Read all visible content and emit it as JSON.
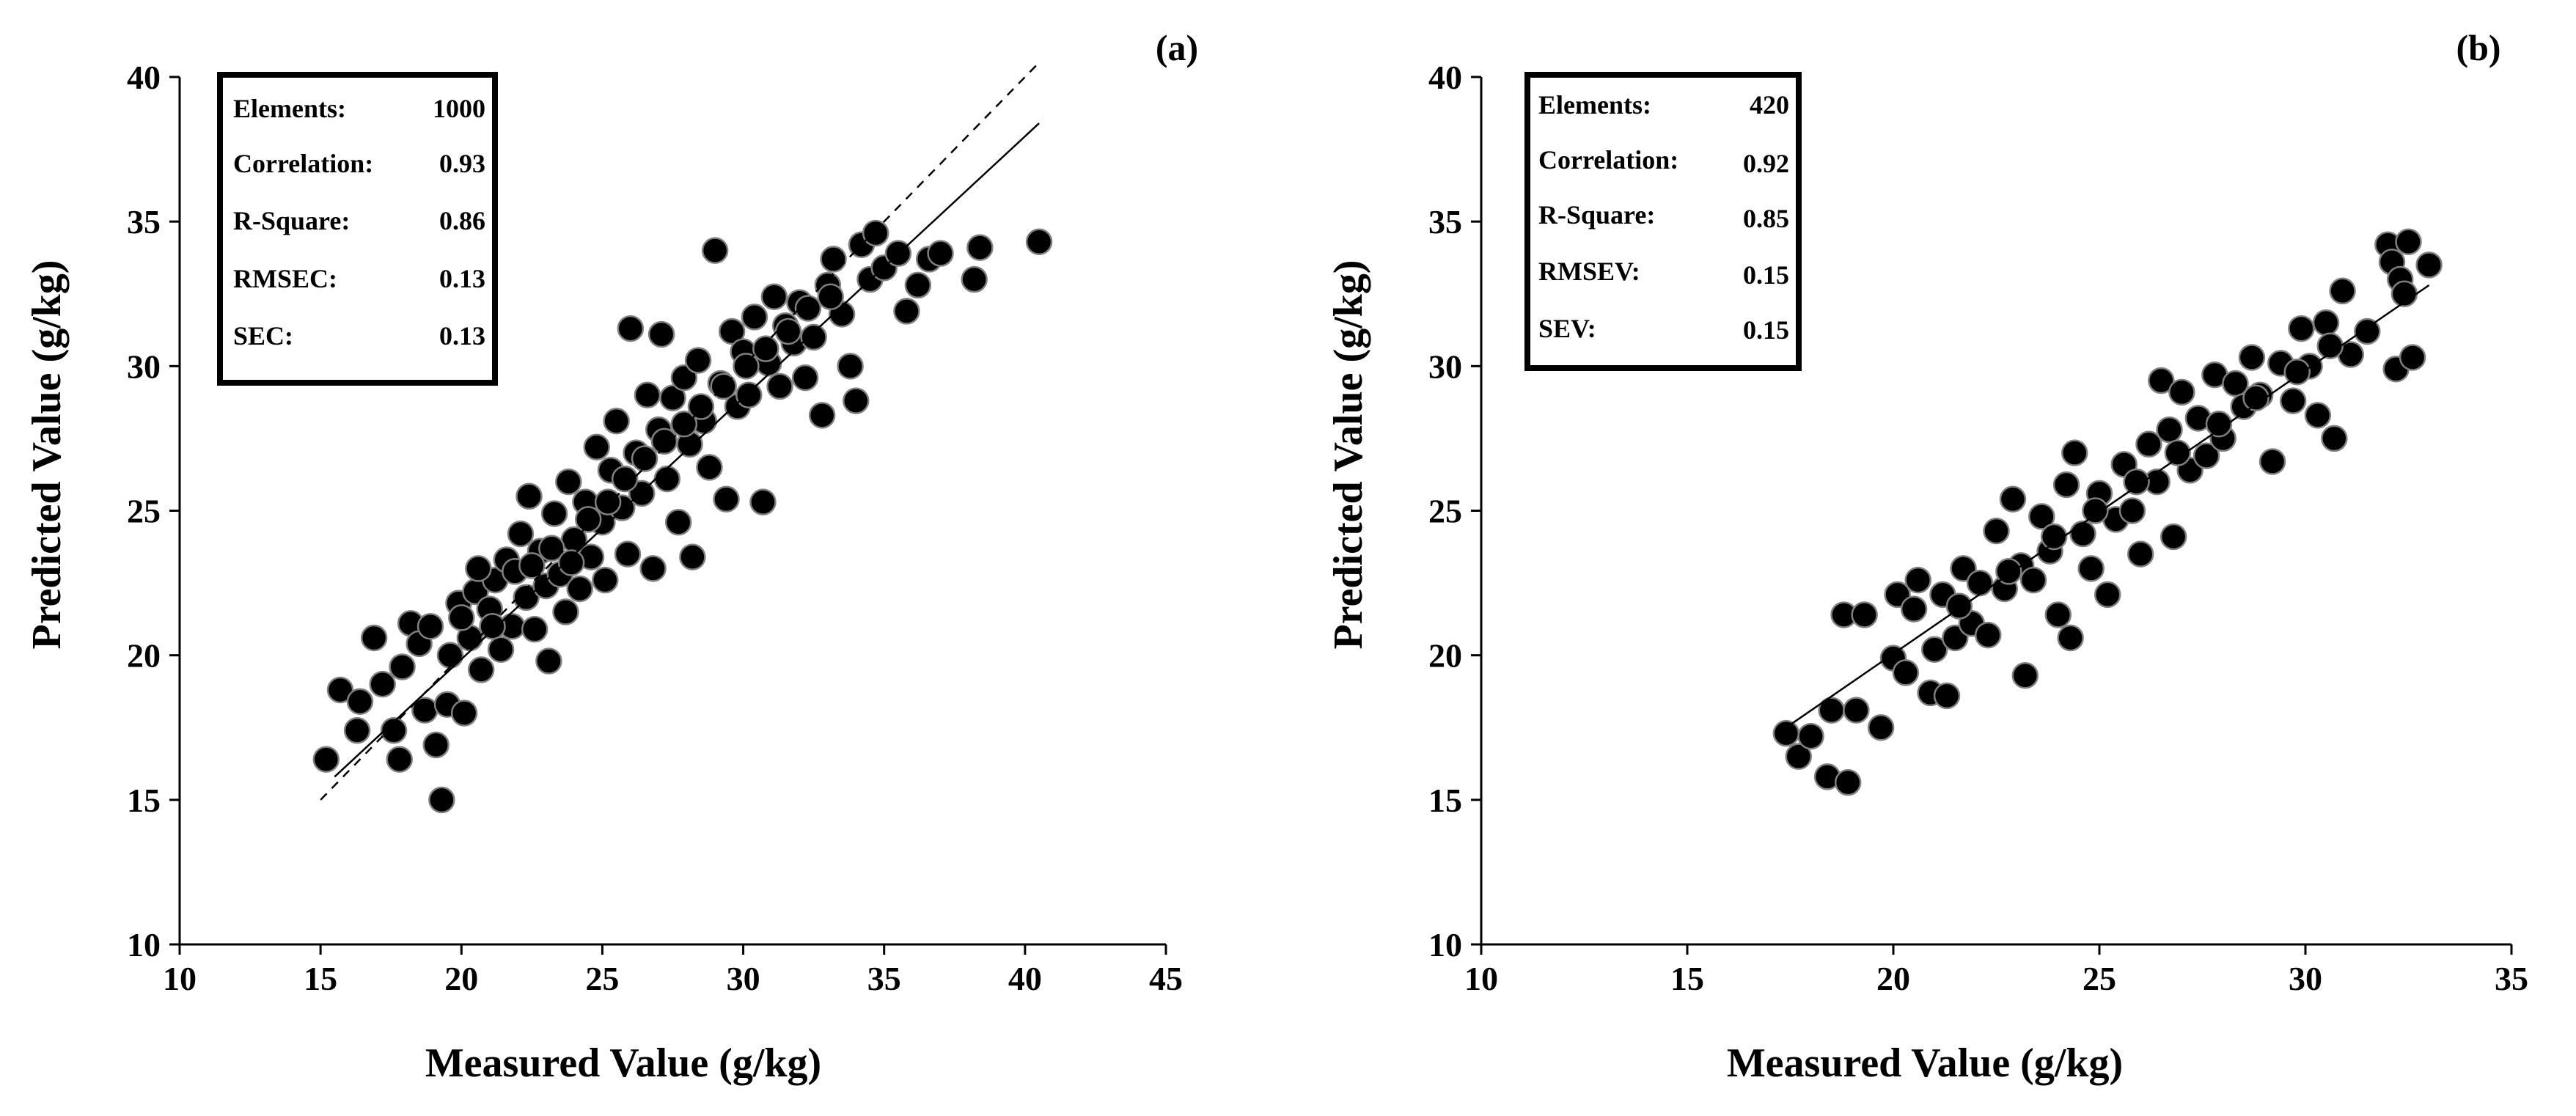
{
  "chart_data": [
    {
      "type": "scatter",
      "panel_label": "(a)",
      "xlabel": "Measured Value (g/kg)",
      "ylabel": "Predicted Value (g/kg)",
      "xlim": [
        10,
        45
      ],
      "ylim": [
        10,
        40
      ],
      "xticks": [
        10,
        15,
        20,
        25,
        30,
        35,
        40,
        45
      ],
      "yticks": [
        10,
        15,
        20,
        25,
        30,
        35,
        40
      ],
      "stats": [
        {
          "label": "Elements:",
          "value": "1000"
        },
        {
          "label": "Correlation:",
          "value": "0.93"
        },
        {
          "label": "R-Square:",
          "value": "0.86"
        },
        {
          "label": "RMSEC:",
          "value": "0.13"
        },
        {
          "label": "SEC:",
          "value": "0.13"
        }
      ],
      "lines": [
        {
          "name": "1:1 line",
          "style": "dashed",
          "x": [
            15,
            40.5
          ],
          "y": [
            15,
            40.5
          ]
        },
        {
          "name": "fit line",
          "style": "solid",
          "x": [
            15.5,
            40.5
          ],
          "y": [
            15.8,
            38.4
          ]
        }
      ],
      "points": [
        [
          15.2,
          16.4
        ],
        [
          15.7,
          18.8
        ],
        [
          16.3,
          17.4
        ],
        [
          16.4,
          18.4
        ],
        [
          16.9,
          20.6
        ],
        [
          17.2,
          19.0
        ],
        [
          17.6,
          17.4
        ],
        [
          17.8,
          16.4
        ],
        [
          17.9,
          19.6
        ],
        [
          18.2,
          21.1
        ],
        [
          18.5,
          20.4
        ],
        [
          18.7,
          18.1
        ],
        [
          18.9,
          21.0
        ],
        [
          19.1,
          16.9
        ],
        [
          19.3,
          15.0
        ],
        [
          19.5,
          18.3
        ],
        [
          19.6,
          20.0
        ],
        [
          19.9,
          21.8
        ],
        [
          20.1,
          18.0
        ],
        [
          20.3,
          20.6
        ],
        [
          20.5,
          22.2
        ],
        [
          20.7,
          19.5
        ],
        [
          21.0,
          21.6
        ],
        [
          21.2,
          22.6
        ],
        [
          21.4,
          20.2
        ],
        [
          21.6,
          23.3
        ],
        [
          21.8,
          21.0
        ],
        [
          22.1,
          24.2
        ],
        [
          22.3,
          22.0
        ],
        [
          22.4,
          25.5
        ],
        [
          22.6,
          20.9
        ],
        [
          22.8,
          23.6
        ],
        [
          23.0,
          22.4
        ],
        [
          23.1,
          19.8
        ],
        [
          23.3,
          24.9
        ],
        [
          23.5,
          22.8
        ],
        [
          23.7,
          21.5
        ],
        [
          23.8,
          26.0
        ],
        [
          24.0,
          24.0
        ],
        [
          24.2,
          22.3
        ],
        [
          24.4,
          25.3
        ],
        [
          24.6,
          23.4
        ],
        [
          24.8,
          27.2
        ],
        [
          25.0,
          24.6
        ],
        [
          25.1,
          22.6
        ],
        [
          25.3,
          26.4
        ],
        [
          25.5,
          28.1
        ],
        [
          25.7,
          25.1
        ],
        [
          25.9,
          23.5
        ],
        [
          26.0,
          31.3
        ],
        [
          26.2,
          27.0
        ],
        [
          26.4,
          25.6
        ],
        [
          26.6,
          29.0
        ],
        [
          26.8,
          23.0
        ],
        [
          27.0,
          27.8
        ],
        [
          27.1,
          31.1
        ],
        [
          27.3,
          26.1
        ],
        [
          27.5,
          28.9
        ],
        [
          27.7,
          24.6
        ],
        [
          27.9,
          29.6
        ],
        [
          28.1,
          27.3
        ],
        [
          28.2,
          23.4
        ],
        [
          28.4,
          30.2
        ],
        [
          28.6,
          28.1
        ],
        [
          28.8,
          26.5
        ],
        [
          29.0,
          34.0
        ],
        [
          29.2,
          29.4
        ],
        [
          29.4,
          25.4
        ],
        [
          29.6,
          31.2
        ],
        [
          29.8,
          28.6
        ],
        [
          30.0,
          30.5
        ],
        [
          30.2,
          29.0
        ],
        [
          30.4,
          31.7
        ],
        [
          30.7,
          25.3
        ],
        [
          30.9,
          30.1
        ],
        [
          31.1,
          32.4
        ],
        [
          31.3,
          29.3
        ],
        [
          31.5,
          31.4
        ],
        [
          31.8,
          30.8
        ],
        [
          32.0,
          32.2
        ],
        [
          32.2,
          29.6
        ],
        [
          32.5,
          31.0
        ],
        [
          32.8,
          28.3
        ],
        [
          33.0,
          32.8
        ],
        [
          33.2,
          33.7
        ],
        [
          33.5,
          31.8
        ],
        [
          33.8,
          30.0
        ],
        [
          34.0,
          28.8
        ],
        [
          34.2,
          34.2
        ],
        [
          34.5,
          33.0
        ],
        [
          34.7,
          34.6
        ],
        [
          35.0,
          33.4
        ],
        [
          35.5,
          33.9
        ],
        [
          35.8,
          31.9
        ],
        [
          36.2,
          32.8
        ],
        [
          36.6,
          33.7
        ],
        [
          37.0,
          33.9
        ],
        [
          38.2,
          33.0
        ],
        [
          38.4,
          34.1
        ],
        [
          40.5,
          34.3
        ],
        [
          20.0,
          21.3
        ],
        [
          20.6,
          23.0
        ],
        [
          21.1,
          21.0
        ],
        [
          21.9,
          22.9
        ],
        [
          22.5,
          23.1
        ],
        [
          23.2,
          23.7
        ],
        [
          23.9,
          23.2
        ],
        [
          24.5,
          24.7
        ],
        [
          25.2,
          25.3
        ],
        [
          25.8,
          26.1
        ],
        [
          26.5,
          26.8
        ],
        [
          27.2,
          27.4
        ],
        [
          27.9,
          28.0
        ],
        [
          28.5,
          28.6
        ],
        [
          29.3,
          29.3
        ],
        [
          30.1,
          30.0
        ],
        [
          30.8,
          30.6
        ],
        [
          31.6,
          31.2
        ],
        [
          32.3,
          32.0
        ],
        [
          33.1,
          32.4
        ]
      ]
    },
    {
      "type": "scatter",
      "panel_label": "(b)",
      "xlabel": "Measured Value (g/kg)",
      "ylabel": "Predicted Value (g/kg)",
      "xlim": [
        10,
        35
      ],
      "ylim": [
        10,
        40
      ],
      "xticks": [
        10,
        15,
        20,
        25,
        30,
        35
      ],
      "yticks": [
        10,
        15,
        20,
        25,
        30,
        35,
        40
      ],
      "stats": [
        {
          "label": "Elements:",
          "value": "420"
        },
        {
          "label": "Correlation:",
          "value": "0.92"
        },
        {
          "label": "R-Square:",
          "value": "0.85"
        },
        {
          "label": "RMSEV:",
          "value": "0.15"
        },
        {
          "label": "SEV:",
          "value": "0.15"
        }
      ],
      "lines": [
        {
          "name": "fit line",
          "style": "solid",
          "x": [
            17.5,
            33.0
          ],
          "y": [
            17.6,
            32.8
          ]
        }
      ],
      "points": [
        [
          17.4,
          17.3
        ],
        [
          17.7,
          16.5
        ],
        [
          18.0,
          17.2
        ],
        [
          18.4,
          15.8
        ],
        [
          18.5,
          18.1
        ],
        [
          18.8,
          21.4
        ],
        [
          18.9,
          15.6
        ],
        [
          19.1,
          18.1
        ],
        [
          19.3,
          21.4
        ],
        [
          19.7,
          17.5
        ],
        [
          20.0,
          19.9
        ],
        [
          20.1,
          22.1
        ],
        [
          20.3,
          19.4
        ],
        [
          20.5,
          21.6
        ],
        [
          20.6,
          22.6
        ],
        [
          20.9,
          18.7
        ],
        [
          21.0,
          20.2
        ],
        [
          21.2,
          22.1
        ],
        [
          21.3,
          18.6
        ],
        [
          21.5,
          20.6
        ],
        [
          21.7,
          23.0
        ],
        [
          21.9,
          21.1
        ],
        [
          22.1,
          22.5
        ],
        [
          22.3,
          20.7
        ],
        [
          22.5,
          24.3
        ],
        [
          22.7,
          22.3
        ],
        [
          22.9,
          25.4
        ],
        [
          23.1,
          23.1
        ],
        [
          23.2,
          19.3
        ],
        [
          23.4,
          22.6
        ],
        [
          23.6,
          24.8
        ],
        [
          23.8,
          23.6
        ],
        [
          24.0,
          21.4
        ],
        [
          24.2,
          25.9
        ],
        [
          24.3,
          20.6
        ],
        [
          24.4,
          27.0
        ],
        [
          24.6,
          24.2
        ],
        [
          24.8,
          23.0
        ],
        [
          25.0,
          25.6
        ],
        [
          25.2,
          22.1
        ],
        [
          25.4,
          24.7
        ],
        [
          25.6,
          26.6
        ],
        [
          25.8,
          25.0
        ],
        [
          26.0,
          23.5
        ],
        [
          26.2,
          27.3
        ],
        [
          26.4,
          26.0
        ],
        [
          26.5,
          29.5
        ],
        [
          26.7,
          27.8
        ],
        [
          26.8,
          24.1
        ],
        [
          27.0,
          29.1
        ],
        [
          27.2,
          26.4
        ],
        [
          27.4,
          28.2
        ],
        [
          27.6,
          26.9
        ],
        [
          27.8,
          29.7
        ],
        [
          28.0,
          27.5
        ],
        [
          28.3,
          29.4
        ],
        [
          28.5,
          28.6
        ],
        [
          28.7,
          30.3
        ],
        [
          28.9,
          29.0
        ],
        [
          29.2,
          26.7
        ],
        [
          29.4,
          30.1
        ],
        [
          29.7,
          28.8
        ],
        [
          29.9,
          31.3
        ],
        [
          30.1,
          30.0
        ],
        [
          30.3,
          28.3
        ],
        [
          30.5,
          31.5
        ],
        [
          30.7,
          27.5
        ],
        [
          30.9,
          32.6
        ],
        [
          31.1,
          30.4
        ],
        [
          31.5,
          31.2
        ],
        [
          32.0,
          34.2
        ],
        [
          32.1,
          33.6
        ],
        [
          32.2,
          29.9
        ],
        [
          32.3,
          33.0
        ],
        [
          32.4,
          32.5
        ],
        [
          32.5,
          34.3
        ],
        [
          32.6,
          30.3
        ],
        [
          33.0,
          33.5
        ],
        [
          21.6,
          21.7
        ],
        [
          22.8,
          22.9
        ],
        [
          23.9,
          24.1
        ],
        [
          24.9,
          25.0
        ],
        [
          25.9,
          26.0
        ],
        [
          26.9,
          27.0
        ],
        [
          27.9,
          28.0
        ],
        [
          28.8,
          28.9
        ],
        [
          29.8,
          29.8
        ],
        [
          30.6,
          30.7
        ]
      ]
    }
  ]
}
